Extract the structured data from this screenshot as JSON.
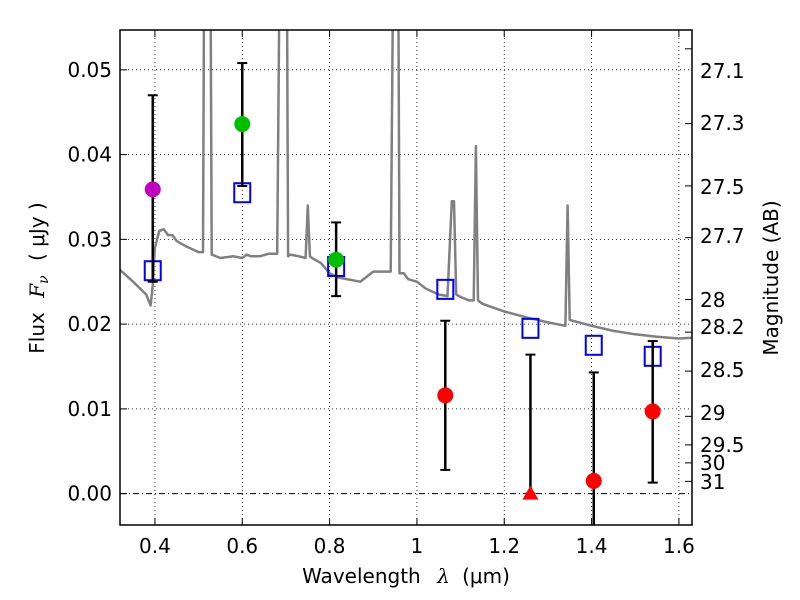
{
  "chart_data": {
    "type": "scatter",
    "title": "",
    "xlabel": "Wavelength",
    "xlabel_symbol": "λ",
    "xlabel_unit": "(μm)",
    "ylabel": "Flux",
    "ylabel_symbol": "F",
    "ylabel_sub": "ν",
    "ylabel_unit": "( μJy )",
    "y2label": "Magnitude (AB)",
    "xlim": [
      0.32,
      1.63
    ],
    "ylim": [
      -0.0037,
      0.0547
    ],
    "grid": true,
    "x_ticks": [
      0.4,
      0.6,
      0.8,
      1.0,
      1.2,
      1.4,
      1.6
    ],
    "x_tick_labels": [
      "0.4",
      "0.6",
      "0.8",
      "1",
      "1.2",
      "1.4",
      "1.6"
    ],
    "y_ticks": [
      0.0,
      0.01,
      0.02,
      0.03,
      0.04,
      0.05
    ],
    "y_tick_labels": [
      "0.00",
      "0.01",
      "0.02",
      "0.03",
      "0.04",
      "0.05"
    ],
    "y2_tick_labels": [
      "27.1",
      "27.3",
      "27.5",
      "27.7",
      "28",
      "28.2",
      "28.5",
      "29",
      "29.5",
      "30",
      "31"
    ],
    "y2_tick_mags": [
      27.1,
      27.3,
      27.5,
      27.7,
      28.0,
      28.2,
      28.5,
      29.0,
      29.5,
      30.0,
      31.0
    ],
    "model_spectrum": {
      "name": "model SED",
      "color": "#808080",
      "x": [
        0.32,
        0.35,
        0.38,
        0.39,
        0.395,
        0.4,
        0.41,
        0.42,
        0.43,
        0.44,
        0.45,
        0.47,
        0.5,
        0.51,
        0.515,
        0.52,
        0.525,
        0.53,
        0.55,
        0.58,
        0.6,
        0.61,
        0.62,
        0.64,
        0.66,
        0.68,
        0.69,
        0.695,
        0.7,
        0.705,
        0.71,
        0.73,
        0.745,
        0.75,
        0.755,
        0.76,
        0.78,
        0.8,
        0.82,
        0.85,
        0.87,
        0.9,
        0.92,
        0.94,
        0.95,
        0.955,
        0.96,
        0.97,
        0.98,
        1.0,
        1.02,
        1.05,
        1.07,
        1.08,
        1.085,
        1.09,
        1.1,
        1.12,
        1.13,
        1.135,
        1.14,
        1.145,
        1.15,
        1.2,
        1.25,
        1.3,
        1.34,
        1.345,
        1.35,
        1.4,
        1.45,
        1.5,
        1.55,
        1.6,
        1.63
      ],
      "y": [
        0.0264,
        0.025,
        0.0235,
        0.0222,
        0.0245,
        0.029,
        0.031,
        0.0312,
        0.0305,
        0.0305,
        0.0298,
        0.0292,
        0.0285,
        0.0285,
        0.09,
        0.09,
        0.09,
        0.0282,
        0.0278,
        0.028,
        0.0278,
        0.0282,
        0.028,
        0.028,
        0.0283,
        0.0283,
        0.09,
        0.09,
        0.09,
        0.028,
        0.0282,
        0.028,
        0.0278,
        0.034,
        0.028,
        0.0278,
        0.0272,
        0.026,
        0.0255,
        0.0252,
        0.025,
        0.0262,
        0.0262,
        0.0262,
        0.09,
        0.09,
        0.026,
        0.026,
        0.0253,
        0.025,
        0.0242,
        0.0235,
        0.0233,
        0.0345,
        0.0345,
        0.0235,
        0.0232,
        0.0228,
        0.0228,
        0.041,
        0.0228,
        0.0226,
        0.0224,
        0.0215,
        0.0208,
        0.0202,
        0.0198,
        0.034,
        0.0205,
        0.0198,
        0.0192,
        0.0188,
        0.0185,
        0.0183,
        0.0184
      ]
    },
    "series": [
      {
        "name": "model photometry",
        "marker": "open-square",
        "color": "#0000ff",
        "points": [
          {
            "x": 0.395,
            "y": 0.0263
          },
          {
            "x": 0.6,
            "y": 0.0355
          },
          {
            "x": 0.815,
            "y": 0.0268
          },
          {
            "x": 1.065,
            "y": 0.0241
          },
          {
            "x": 1.26,
            "y": 0.0195
          },
          {
            "x": 1.405,
            "y": 0.0175
          },
          {
            "x": 1.54,
            "y": 0.0162
          }
        ]
      },
      {
        "name": "observed (magenta)",
        "marker": "filled-circle",
        "color": "#bf00bf",
        "points": [
          {
            "x": 0.395,
            "y": 0.0359,
            "ylo": 0.025,
            "yhi": 0.047
          }
        ]
      },
      {
        "name": "observed (green)",
        "marker": "filled-circle",
        "color": "#00bf00",
        "points": [
          {
            "x": 0.6,
            "y": 0.0436,
            "ylo": 0.0363,
            "yhi": 0.0508
          },
          {
            "x": 0.815,
            "y": 0.0276,
            "ylo": 0.0233,
            "yhi": 0.032
          }
        ]
      },
      {
        "name": "observed (red)",
        "marker": "filled-circle",
        "color": "#ff0000",
        "points": [
          {
            "x": 1.065,
            "y": 0.0116,
            "ylo": 0.0028,
            "yhi": 0.0204
          },
          {
            "x": 1.405,
            "y": 0.0015,
            "ylo": -0.0037,
            "yhi": 0.0143
          },
          {
            "x": 1.54,
            "y": 0.0097,
            "ylo": 0.0013,
            "yhi": 0.018
          }
        ]
      },
      {
        "name": "upper limit (red)",
        "marker": "filled-triangle",
        "color": "#ff0000",
        "points": [
          {
            "x": 1.26,
            "y": 0.0,
            "ylo": 0.0,
            "yhi": 0.0164
          }
        ]
      }
    ]
  }
}
